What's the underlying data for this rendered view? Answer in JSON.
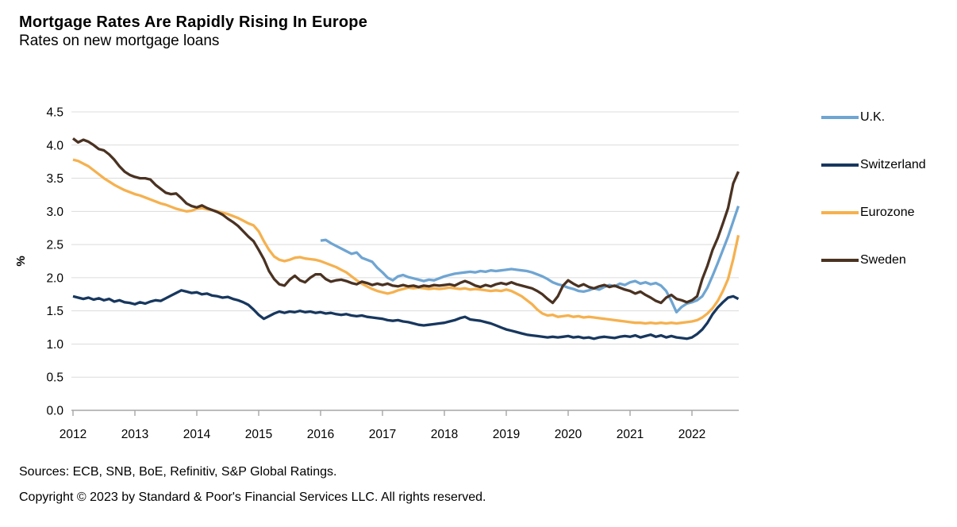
{
  "header": {
    "title": "Mortgage Rates Are Rapidly Rising In Europe",
    "subtitle": "Rates on new mortgage loans"
  },
  "footer": {
    "sources": "Sources: ECB, SNB, BoE, Refinitiv, S&P Global Ratings.",
    "copyright": "Copyright © 2023 by Standard & Poor's Financial Services LLC. All rights reserved."
  },
  "colors": {
    "grid": "#DCDCDC",
    "axis": "#A6A6A6",
    "text": "#000000"
  },
  "chart_data": {
    "type": "line",
    "title": "Mortgage Rates Are Rapidly Rising In Europe",
    "subtitle": "Rates on new mortgage loans",
    "interval": "monthly",
    "grid": "horizontal",
    "legend_position": "right",
    "y_axis": {
      "label": "%",
      "min": 0,
      "max": 4.5,
      "tick_labels": [
        "0.0",
        "0.5",
        "1.0",
        "1.5",
        "2.0",
        "2.5",
        "3.0",
        "3.5",
        "4.0",
        "4.5"
      ]
    },
    "x_axis": {
      "min": 2012,
      "max": 2022.83,
      "tick_labels": [
        "2012",
        "2013",
        "2014",
        "2015",
        "2016",
        "2017",
        "2018",
        "2019",
        "2020",
        "2021",
        "2022"
      ]
    },
    "series": [
      {
        "name": "U.K.",
        "color": "#6FA5D2",
        "x_start": 2016.0,
        "values": [
          2.56,
          2.57,
          2.52,
          2.48,
          2.44,
          2.4,
          2.36,
          2.38,
          2.3,
          2.27,
          2.24,
          2.15,
          2.08,
          2.0,
          1.96,
          2.02,
          2.04,
          2.01,
          1.99,
          1.97,
          1.95,
          1.97,
          1.96,
          1.99,
          2.02,
          2.04,
          2.06,
          2.07,
          2.08,
          2.09,
          2.08,
          2.1,
          2.09,
          2.11,
          2.1,
          2.11,
          2.12,
          2.13,
          2.12,
          2.11,
          2.1,
          2.08,
          2.05,
          2.02,
          1.98,
          1.93,
          1.9,
          1.88,
          1.85,
          1.83,
          1.8,
          1.79,
          1.81,
          1.84,
          1.82,
          1.86,
          1.89,
          1.87,
          1.91,
          1.89,
          1.93,
          1.95,
          1.91,
          1.93,
          1.9,
          1.92,
          1.88,
          1.8,
          1.65,
          1.48,
          1.56,
          1.61,
          1.63,
          1.66,
          1.72,
          1.85,
          2.03,
          2.22,
          2.42,
          2.62,
          2.85,
          3.08
        ]
      },
      {
        "name": "Switzerland",
        "color": "#17375E",
        "x_start": 2012.0,
        "values": [
          1.72,
          1.7,
          1.68,
          1.7,
          1.67,
          1.69,
          1.66,
          1.68,
          1.64,
          1.66,
          1.63,
          1.62,
          1.6,
          1.63,
          1.61,
          1.64,
          1.66,
          1.65,
          1.69,
          1.73,
          1.77,
          1.81,
          1.79,
          1.77,
          1.78,
          1.75,
          1.76,
          1.73,
          1.72,
          1.7,
          1.71,
          1.68,
          1.66,
          1.63,
          1.59,
          1.52,
          1.44,
          1.38,
          1.42,
          1.46,
          1.49,
          1.47,
          1.49,
          1.48,
          1.5,
          1.48,
          1.49,
          1.47,
          1.48,
          1.46,
          1.47,
          1.45,
          1.44,
          1.45,
          1.43,
          1.42,
          1.43,
          1.41,
          1.4,
          1.39,
          1.38,
          1.36,
          1.35,
          1.36,
          1.34,
          1.33,
          1.31,
          1.29,
          1.28,
          1.29,
          1.3,
          1.31,
          1.32,
          1.34,
          1.36,
          1.39,
          1.41,
          1.37,
          1.36,
          1.35,
          1.33,
          1.31,
          1.28,
          1.25,
          1.22,
          1.2,
          1.18,
          1.16,
          1.14,
          1.13,
          1.12,
          1.11,
          1.1,
          1.11,
          1.1,
          1.11,
          1.12,
          1.1,
          1.11,
          1.09,
          1.1,
          1.08,
          1.1,
          1.11,
          1.1,
          1.09,
          1.11,
          1.12,
          1.11,
          1.13,
          1.1,
          1.12,
          1.14,
          1.11,
          1.13,
          1.1,
          1.12,
          1.1,
          1.09,
          1.08,
          1.1,
          1.15,
          1.22,
          1.32,
          1.45,
          1.55,
          1.63,
          1.7,
          1.72,
          1.68
        ]
      },
      {
        "name": "Eurozone",
        "color": "#F5B14F",
        "x_start": 2012.0,
        "values": [
          3.78,
          3.76,
          3.72,
          3.68,
          3.62,
          3.56,
          3.5,
          3.45,
          3.4,
          3.36,
          3.32,
          3.29,
          3.26,
          3.24,
          3.21,
          3.18,
          3.15,
          3.12,
          3.1,
          3.07,
          3.04,
          3.02,
          3.0,
          3.01,
          3.04,
          3.05,
          3.03,
          3.02,
          3.0,
          2.98,
          2.96,
          2.93,
          2.9,
          2.86,
          2.82,
          2.79,
          2.7,
          2.55,
          2.42,
          2.32,
          2.27,
          2.25,
          2.27,
          2.3,
          2.31,
          2.29,
          2.28,
          2.27,
          2.25,
          2.22,
          2.19,
          2.16,
          2.12,
          2.08,
          2.02,
          1.96,
          1.91,
          1.87,
          1.83,
          1.8,
          1.78,
          1.76,
          1.78,
          1.81,
          1.83,
          1.85,
          1.84,
          1.85,
          1.84,
          1.83,
          1.84,
          1.83,
          1.84,
          1.85,
          1.84,
          1.83,
          1.84,
          1.82,
          1.83,
          1.82,
          1.81,
          1.8,
          1.81,
          1.8,
          1.82,
          1.8,
          1.76,
          1.72,
          1.66,
          1.6,
          1.52,
          1.46,
          1.43,
          1.44,
          1.41,
          1.42,
          1.43,
          1.41,
          1.42,
          1.4,
          1.41,
          1.4,
          1.39,
          1.38,
          1.37,
          1.36,
          1.35,
          1.34,
          1.33,
          1.32,
          1.32,
          1.31,
          1.32,
          1.31,
          1.32,
          1.31,
          1.32,
          1.31,
          1.32,
          1.33,
          1.34,
          1.36,
          1.4,
          1.46,
          1.54,
          1.65,
          1.8,
          1.98,
          2.28,
          2.64
        ]
      },
      {
        "name": "Sweden",
        "color": "#4A3222",
        "x_start": 2012.0,
        "values": [
          4.1,
          4.04,
          4.08,
          4.05,
          4.0,
          3.94,
          3.92,
          3.86,
          3.78,
          3.68,
          3.6,
          3.55,
          3.52,
          3.5,
          3.5,
          3.48,
          3.4,
          3.34,
          3.28,
          3.26,
          3.27,
          3.2,
          3.12,
          3.08,
          3.06,
          3.09,
          3.05,
          3.02,
          2.99,
          2.95,
          2.89,
          2.84,
          2.78,
          2.7,
          2.62,
          2.55,
          2.42,
          2.28,
          2.1,
          1.98,
          1.9,
          1.88,
          1.97,
          2.03,
          1.96,
          1.93,
          2.0,
          2.05,
          2.05,
          1.98,
          1.94,
          1.96,
          1.97,
          1.95,
          1.92,
          1.9,
          1.94,
          1.92,
          1.89,
          1.91,
          1.89,
          1.91,
          1.88,
          1.87,
          1.89,
          1.87,
          1.88,
          1.86,
          1.88,
          1.87,
          1.89,
          1.88,
          1.89,
          1.9,
          1.88,
          1.92,
          1.95,
          1.92,
          1.88,
          1.86,
          1.89,
          1.87,
          1.9,
          1.92,
          1.9,
          1.93,
          1.9,
          1.88,
          1.86,
          1.84,
          1.8,
          1.75,
          1.68,
          1.62,
          1.72,
          1.88,
          1.96,
          1.91,
          1.87,
          1.9,
          1.86,
          1.84,
          1.87,
          1.89,
          1.86,
          1.88,
          1.85,
          1.82,
          1.8,
          1.76,
          1.79,
          1.74,
          1.7,
          1.65,
          1.62,
          1.7,
          1.74,
          1.68,
          1.66,
          1.63,
          1.66,
          1.72,
          1.98,
          2.18,
          2.42,
          2.6,
          2.82,
          3.05,
          3.42,
          3.6
        ]
      }
    ]
  }
}
